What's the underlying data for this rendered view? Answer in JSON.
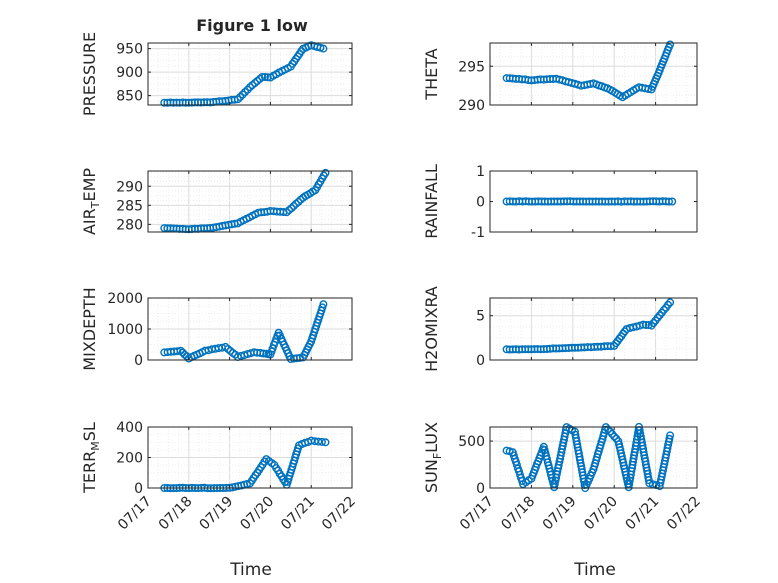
{
  "figure": {
    "title": "Figure 1 low",
    "x_label": "Time",
    "x_ticks": [
      "07/17",
      "07/18",
      "07/19",
      "07/20",
      "07/21",
      "07/22"
    ],
    "marker_color": "#0072BD"
  },
  "chart_data": [
    {
      "type": "scatter",
      "ylabel": "PRESSURE",
      "ylim": [
        830,
        962
      ],
      "yticks": [
        850,
        900,
        950
      ],
      "grid": true,
      "x": [
        "07/17.4",
        "07/18.0",
        "07/18.6",
        "07/19.2",
        "07/19.5",
        "07/19.8",
        "07/20.0",
        "07/20.5",
        "07/20.8",
        "07/21.0",
        "07/21.3"
      ],
      "values": [
        835,
        835,
        836,
        842,
        868,
        890,
        889,
        912,
        950,
        957,
        950
      ]
    },
    {
      "type": "scatter",
      "ylabel": "THETA",
      "ylim": [
        290,
        298
      ],
      "yticks": [
        290,
        295
      ],
      "grid": true,
      "x": [
        "07/17.4",
        "07/18.0",
        "07/18.6",
        "07/19.2",
        "07/19.5",
        "07/19.9",
        "07/20.2",
        "07/20.6",
        "07/20.9",
        "07/21.1",
        "07/21.35"
      ],
      "values": [
        293.5,
        293.2,
        293.4,
        292.5,
        292.8,
        292.0,
        291.0,
        292.3,
        292.0,
        294.5,
        297.8
      ]
    },
    {
      "type": "scatter",
      "ylabel": "AIR_TEMP",
      "ylim": [
        278,
        294
      ],
      "yticks": [
        280,
        285,
        290
      ],
      "grid": true,
      "x": [
        "07/17.4",
        "07/18.0",
        "07/18.6",
        "07/19.2",
        "07/19.7",
        "07/20.0",
        "07/20.4",
        "07/20.8",
        "07/21.1",
        "07/21.35"
      ],
      "values": [
        279,
        278.7,
        279.1,
        280.3,
        283,
        283.5,
        283.2,
        287,
        289,
        293.5
      ]
    },
    {
      "type": "scatter",
      "ylabel": "RAINFALL",
      "ylim": [
        -1,
        1
      ],
      "yticks": [
        -1,
        0,
        1
      ],
      "grid": false,
      "x": [
        "07/17.4",
        "07/21.4"
      ],
      "values": [
        0,
        0
      ]
    },
    {
      "type": "scatter",
      "ylabel": "MIXDEPTH",
      "ylim": [
        0,
        2000
      ],
      "yticks": [
        0,
        1000,
        2000
      ],
      "grid": true,
      "x": [
        "07/17.4",
        "07/17.8",
        "07/18.0",
        "07/18.4",
        "07/18.9",
        "07/19.2",
        "07/19.6",
        "07/19.9",
        "07/20.0",
        "07/20.2",
        "07/20.5",
        "07/20.8",
        "07/21.0",
        "07/21.3"
      ],
      "values": [
        250,
        300,
        50,
        300,
        420,
        100,
        250,
        200,
        180,
        880,
        30,
        80,
        600,
        1800
      ]
    },
    {
      "type": "scatter",
      "ylabel": "H2OMIXRA",
      "ylim": [
        0,
        7
      ],
      "yticks": [
        0,
        5
      ],
      "grid": true,
      "x": [
        "07/17.4",
        "07/18.0",
        "07/18.6",
        "07/19.2",
        "07/19.6",
        "07/20.0",
        "07/20.3",
        "07/20.7",
        "07/20.9",
        "07/21.35"
      ],
      "values": [
        1.2,
        1.2,
        1.3,
        1.4,
        1.5,
        1.6,
        3.5,
        4.0,
        3.9,
        6.5
      ]
    },
    {
      "type": "scatter",
      "ylabel": "TERR_MSL",
      "ylim": [
        0,
        400
      ],
      "yticks": [
        0,
        200,
        400
      ],
      "grid": true,
      "x": [
        "07/17.4",
        "07/18.0",
        "07/19.0",
        "07/19.5",
        "07/19.9",
        "07/20.1",
        "07/20.4",
        "07/20.7",
        "07/21.0",
        "07/21.35"
      ],
      "values": [
        0,
        0,
        0,
        30,
        190,
        150,
        20,
        280,
        310,
        300
      ]
    },
    {
      "type": "scatter",
      "ylabel": "SUN_FLUX",
      "ylim": [
        0,
        650
      ],
      "yticks": [
        0,
        500
      ],
      "grid": true,
      "x": [
        "07/17.4",
        "07/17.55",
        "07/17.8",
        "07/18.0",
        "07/18.3",
        "07/18.55",
        "07/18.85",
        "07/19.05",
        "07/19.3",
        "07/19.5",
        "07/19.8",
        "07/20.1",
        "07/20.35",
        "07/20.6",
        "07/20.85",
        "07/21.1",
        "07/21.35"
      ],
      "values": [
        400,
        380,
        40,
        100,
        440,
        10,
        650,
        600,
        0,
        200,
        650,
        500,
        10,
        650,
        50,
        20,
        560
      ]
    }
  ]
}
